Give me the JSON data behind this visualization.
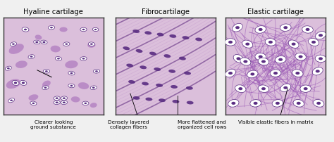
{
  "bg_color": "#f0f0f0",
  "panel1_bg": "#dbbfdb",
  "panel2_bg": "#dbbfdb",
  "panel3_bg": "#dbbfdb",
  "border_color": "#333333",
  "purple_dark": "#5a2d82",
  "purple_med": "#9b59b6",
  "purple_light": "#c39bd3",
  "purple_blob": "#b07cc0",
  "cell_white": "#ffffff",
  "cell_outline": "#5a2d82",
  "fiber_light": "#c8a0d0",
  "fiber_dark": "#8b5fa0",
  "titles": [
    "Hyaline cartilage",
    "Fibrocartilage",
    "Elastic cartilage"
  ],
  "fig_width": 4.74,
  "fig_height": 2.03,
  "dpi": 100
}
